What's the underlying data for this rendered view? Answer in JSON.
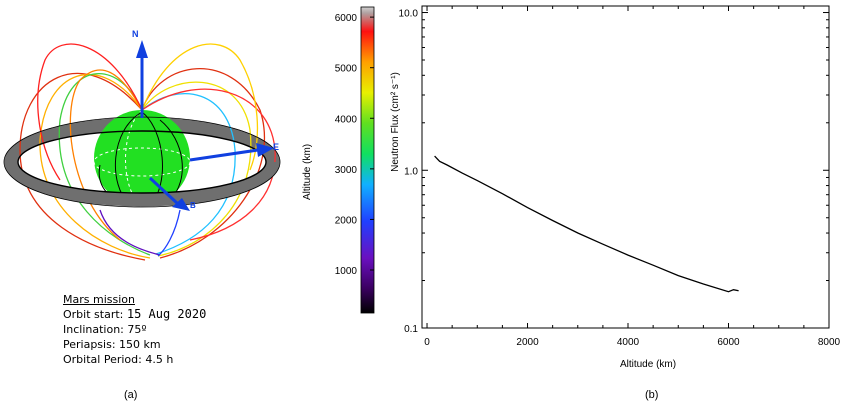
{
  "panel_a": {
    "label": "(a)",
    "axis_labels": {
      "north": "N",
      "east": "E",
      "b": "B"
    },
    "mission_title": "Mars mission",
    "orbit_start_label": "Orbit start:",
    "orbit_start_value": "15 Aug 2020",
    "inclination": "Inclination: 75º",
    "periapsis": "Periapsis: 150 km",
    "orbital_period": "Orbital Period: 4.5 h",
    "colors": {
      "planet": "#22e022",
      "ring": "#6f6f6f",
      "vector": "#1040e0"
    }
  },
  "panel_b": {
    "label": "(b)",
    "colorbar": {
      "label": "Altitude (km)",
      "ticks": [
        "1000",
        "2000",
        "3000",
        "4000",
        "5000",
        "6000"
      ],
      "min": 150,
      "max": 6200
    }
  },
  "chart_data": {
    "type": "line",
    "xlabel": "Altitude (km)",
    "ylabel": "Neutron Flux (cm² s⁻¹)",
    "xlim": [
      -100,
      8000
    ],
    "ylim": [
      0.1,
      11
    ],
    "y_scale": "log",
    "x_ticks": [
      "0",
      "2000",
      "4000",
      "6000",
      "8000"
    ],
    "y_ticks": [
      "10.0",
      "1.0",
      "0.1"
    ],
    "x": [
      150,
      250,
      400,
      700,
      1000,
      1500,
      2000,
      2500,
      3000,
      3500,
      4000,
      4500,
      5000,
      5500,
      6000,
      6100,
      6200
    ],
    "y": [
      1.23,
      1.14,
      1.08,
      0.96,
      0.86,
      0.71,
      0.58,
      0.48,
      0.4,
      0.34,
      0.29,
      0.25,
      0.215,
      0.19,
      0.17,
      0.175,
      0.172
    ],
    "series": [
      {
        "values": [
          1.23,
          1.14,
          1.08,
          0.96,
          0.86,
          0.71,
          0.58,
          0.48,
          0.4,
          0.34,
          0.29,
          0.25,
          0.215,
          0.19,
          0.17,
          0.175,
          0.172
        ]
      }
    ]
  }
}
